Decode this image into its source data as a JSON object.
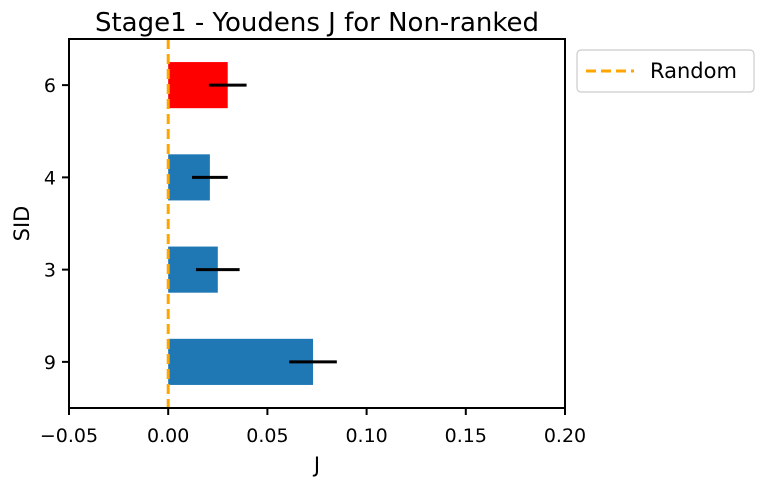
{
  "chart_data": {
    "type": "bar",
    "orientation": "horizontal",
    "title": "Stage1 - Youdens J for Non-ranked",
    "xlabel": "J",
    "ylabel": "SID",
    "categories": [
      "9",
      "3",
      "4",
      "6"
    ],
    "values": [
      0.073,
      0.025,
      0.021,
      0.03
    ],
    "errors": [
      0.012,
      0.011,
      0.009,
      0.0095
    ],
    "bar_colors": [
      "#1f77b4",
      "#1f77b4",
      "#1f77b4",
      "#ff0000"
    ],
    "xlim": [
      -0.05,
      0.2
    ],
    "xticks": [
      "−0.05",
      "0.00",
      "0.05",
      "0.10",
      "0.15",
      "0.20"
    ],
    "xtick_values": [
      -0.05,
      0.0,
      0.05,
      0.1,
      0.15,
      0.2
    ],
    "reference_line": {
      "x": 0.0,
      "style": "dashed",
      "color": "#ffa500",
      "label": "Random"
    },
    "legend": {
      "placement": "outside-top-right",
      "entries": [
        "Random"
      ]
    },
    "grid": false
  }
}
